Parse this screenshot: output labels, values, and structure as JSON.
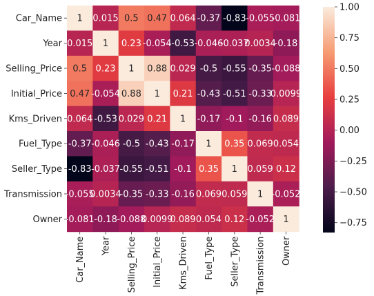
{
  "chart_data": {
    "type": "heatmap",
    "title": "",
    "xlabel": "",
    "ylabel": "",
    "rows": [
      "Car_Name",
      "Year",
      "Selling_Price",
      "Initial_Price",
      "Kms_Driven",
      "Fuel_Type",
      "Seller_Type",
      "Transmission",
      "Owner"
    ],
    "columns": [
      "Car_Name",
      "Year",
      "Selling_Price",
      "Initial_Price",
      "Kms_Driven",
      "Fuel_Type",
      "Seller_Type",
      "Transmission",
      "Owner"
    ],
    "values": [
      [
        1,
        0.015,
        0.5,
        0.47,
        0.064,
        -0.37,
        -0.83,
        -0.055,
        -0.081
      ],
      [
        0.015,
        1,
        0.23,
        -0.054,
        -0.53,
        -0.046,
        -0.037,
        0.0034,
        -0.18
      ],
      [
        0.5,
        0.23,
        1,
        0.88,
        0.029,
        -0.5,
        -0.55,
        -0.35,
        -0.088
      ],
      [
        0.47,
        -0.054,
        0.88,
        1,
        0.21,
        -0.43,
        -0.51,
        -0.33,
        0.0099
      ],
      [
        0.064,
        -0.53,
        0.029,
        0.21,
        1,
        -0.17,
        -0.1,
        -0.16,
        0.089
      ],
      [
        -0.37,
        -0.046,
        -0.5,
        -0.43,
        -0.17,
        1,
        0.35,
        0.069,
        0.054
      ],
      [
        -0.83,
        -0.037,
        -0.55,
        -0.51,
        -0.1,
        0.35,
        1,
        0.059,
        0.12
      ],
      [
        -0.055,
        0.0034,
        -0.35,
        -0.33,
        -0.16,
        0.069,
        0.059,
        1,
        -0.052
      ],
      [
        -0.081,
        -0.18,
        -0.088,
        0.0099,
        0.089,
        0.054,
        0.12,
        -0.052,
        1
      ]
    ],
    "labels": [
      [
        "1",
        "0.015",
        "0.5",
        "0.47",
        "0.064",
        "-0.37",
        "-0.83",
        "-0.055",
        "-0.081"
      ],
      [
        "0.015",
        "1",
        "0.23",
        "-0.054",
        "-0.53",
        "-0.046",
        "-0.037",
        "0.0034",
        "-0.18"
      ],
      [
        "0.5",
        "0.23",
        "1",
        "0.88",
        "0.029",
        "-0.5",
        "-0.55",
        "-0.35",
        "-0.088"
      ],
      [
        "0.47",
        "-0.054",
        "0.88",
        "1",
        "0.21",
        "-0.43",
        "-0.51",
        "-0.33",
        "0.0099"
      ],
      [
        "0.064",
        "-0.53",
        "0.029",
        "0.21",
        "1",
        "-0.17",
        "-0.1",
        "-0.16",
        "0.089"
      ],
      [
        "-0.37",
        "-0.046",
        "-0.5",
        "-0.43",
        "-0.17",
        "1",
        "0.35",
        "0.069",
        "0.054"
      ],
      [
        "-0.83",
        "-0.037",
        "-0.55",
        "-0.51",
        "-0.1",
        "0.35",
        "1",
        "0.059",
        "0.12"
      ],
      [
        "-0.055",
        "0.0034",
        "-0.35",
        "-0.33",
        "-0.16",
        "0.069",
        "0.059",
        "1",
        "-0.052"
      ],
      [
        "-0.081",
        "-0.18",
        "-0.088",
        "0.0099",
        "0.089",
        "0.054",
        "0.12",
        "-0.052",
        "1"
      ]
    ],
    "colorbar": {
      "range": [
        -0.83,
        1
      ],
      "ticks": [
        1.0,
        0.75,
        0.5,
        0.25,
        0.0,
        -0.25,
        -0.5,
        -0.75
      ],
      "tick_labels": [
        "1.00",
        "0.75",
        "0.50",
        "0.25",
        "0.00",
        "−0.25",
        "−0.50",
        "−0.75"
      ],
      "colormap": "rocket",
      "colormap_stops": [
        "#03051a",
        "#4c1d4b",
        "#a11a5b",
        "#e83f3f",
        "#f69c73",
        "#faebdd"
      ]
    },
    "grid": false,
    "legend": "colorbar-right"
  }
}
